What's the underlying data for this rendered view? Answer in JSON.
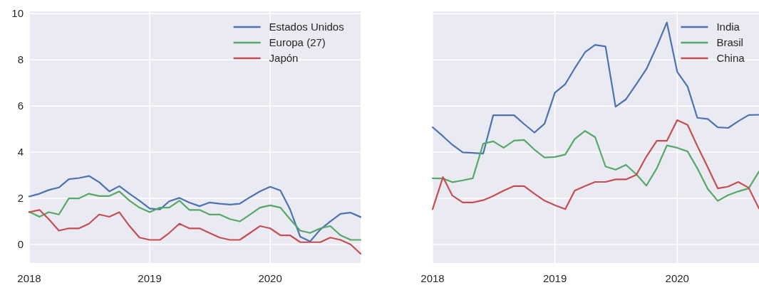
{
  "chart_data": [
    {
      "type": "line",
      "x": [
        "2018-01",
        "2018-02",
        "2018-03",
        "2018-04",
        "2018-05",
        "2018-06",
        "2018-07",
        "2018-08",
        "2018-09",
        "2018-10",
        "2018-11",
        "2018-12",
        "2019-01",
        "2019-02",
        "2019-03",
        "2019-04",
        "2019-05",
        "2019-06",
        "2019-07",
        "2019-08",
        "2019-09",
        "2019-10",
        "2019-11",
        "2019-12",
        "2020-01",
        "2020-02",
        "2020-03",
        "2020-04",
        "2020-05",
        "2020-06",
        "2020-07",
        "2020-08",
        "2020-09",
        "2020-10"
      ],
      "series": [
        {
          "name": "Estados Unidos",
          "color": "#4c72b0",
          "values": [
            2.08,
            2.2,
            2.36,
            2.47,
            2.83,
            2.88,
            2.97,
            2.7,
            2.3,
            2.53,
            2.2,
            1.9,
            1.56,
            1.52,
            1.87,
            2.02,
            1.82,
            1.66,
            1.82,
            1.77,
            1.73,
            1.77,
            2.05,
            2.3,
            2.5,
            2.34,
            1.53,
            0.34,
            0.13,
            0.65,
            1.0,
            1.33,
            1.38,
            1.19
          ]
        },
        {
          "name": "Europa (27)",
          "color": "#55a868",
          "values": [
            1.42,
            1.2,
            1.4,
            1.3,
            2.0,
            2.0,
            2.2,
            2.1,
            2.1,
            2.3,
            1.9,
            1.6,
            1.4,
            1.6,
            1.6,
            1.9,
            1.5,
            1.5,
            1.3,
            1.3,
            1.1,
            1.0,
            1.3,
            1.6,
            1.7,
            1.6,
            1.1,
            0.6,
            0.5,
            0.7,
            0.8,
            0.4,
            0.2,
            0.2
          ]
        },
        {
          "name": "Japón",
          "color": "#c44e52",
          "values": [
            1.4,
            1.5,
            1.1,
            0.6,
            0.7,
            0.7,
            0.9,
            1.3,
            1.2,
            1.4,
            0.8,
            0.3,
            0.2,
            0.2,
            0.5,
            0.9,
            0.7,
            0.7,
            0.5,
            0.3,
            0.2,
            0.2,
            0.5,
            0.8,
            0.7,
            0.4,
            0.4,
            0.1,
            0.1,
            0.1,
            0.3,
            0.2,
            0.0,
            -0.4
          ]
        }
      ],
      "xlim": [
        "2018-01",
        "2020-10"
      ],
      "xticks": [
        "2018",
        "2019",
        "2020"
      ],
      "ylim": [
        -0.8,
        10.1
      ],
      "yticks": [
        0,
        2,
        4,
        6,
        8,
        10
      ],
      "grid": true,
      "legend": "top right"
    },
    {
      "type": "line",
      "x": [
        "2018-01",
        "2018-02",
        "2018-03",
        "2018-04",
        "2018-05",
        "2018-06",
        "2018-07",
        "2018-08",
        "2018-09",
        "2018-10",
        "2018-11",
        "2018-12",
        "2019-01",
        "2019-02",
        "2019-03",
        "2019-04",
        "2019-05",
        "2019-06",
        "2019-07",
        "2019-08",
        "2019-09",
        "2019-10",
        "2019-11",
        "2019-12",
        "2020-01",
        "2020-02",
        "2020-03",
        "2020-04",
        "2020-05",
        "2020-06",
        "2020-07",
        "2020-08",
        "2020-09"
      ],
      "series": [
        {
          "name": "India",
          "color": "#4c72b0",
          "values": [
            5.08,
            4.69,
            4.32,
            3.99,
            3.97,
            3.94,
            5.6,
            5.6,
            5.6,
            5.22,
            4.85,
            5.23,
            6.58,
            6.95,
            7.63,
            8.33,
            8.65,
            8.58,
            5.97,
            6.29,
            6.95,
            7.6,
            8.58,
            9.62,
            7.48,
            6.84,
            5.49,
            5.44,
            5.08,
            5.05,
            5.34,
            5.61,
            5.62
          ]
        },
        {
          "name": "Brasil",
          "color": "#55a868",
          "values": [
            2.87,
            2.86,
            2.7,
            2.78,
            2.87,
            4.37,
            4.47,
            4.19,
            4.5,
            4.53,
            4.11,
            3.77,
            3.79,
            3.9,
            4.57,
            4.92,
            4.65,
            3.38,
            3.24,
            3.45,
            3.04,
            2.55,
            3.3,
            4.29,
            4.19,
            4.03,
            3.3,
            2.41,
            1.89,
            2.14,
            2.3,
            2.43,
            3.16
          ]
        },
        {
          "name": "China",
          "color": "#c44e52",
          "values": [
            1.53,
            2.92,
            2.12,
            1.82,
            1.82,
            1.92,
            2.1,
            2.33,
            2.53,
            2.53,
            2.2,
            1.9,
            1.7,
            1.53,
            2.33,
            2.53,
            2.71,
            2.71,
            2.82,
            2.82,
            3.02,
            3.81,
            4.49,
            4.49,
            5.39,
            5.18,
            4.27,
            3.35,
            2.43,
            2.51,
            2.71,
            2.46,
            1.56
          ]
        }
      ],
      "xlim": [
        "2018-01",
        "2020-09"
      ],
      "xticks": [
        "2018",
        "2019",
        "2020"
      ],
      "ylim": [
        -0.8,
        10.1
      ],
      "yticks": [
        0,
        2,
        4,
        6,
        8,
        10
      ],
      "grid": true,
      "legend": "top right",
      "tick_labels": "x"
    }
  ]
}
